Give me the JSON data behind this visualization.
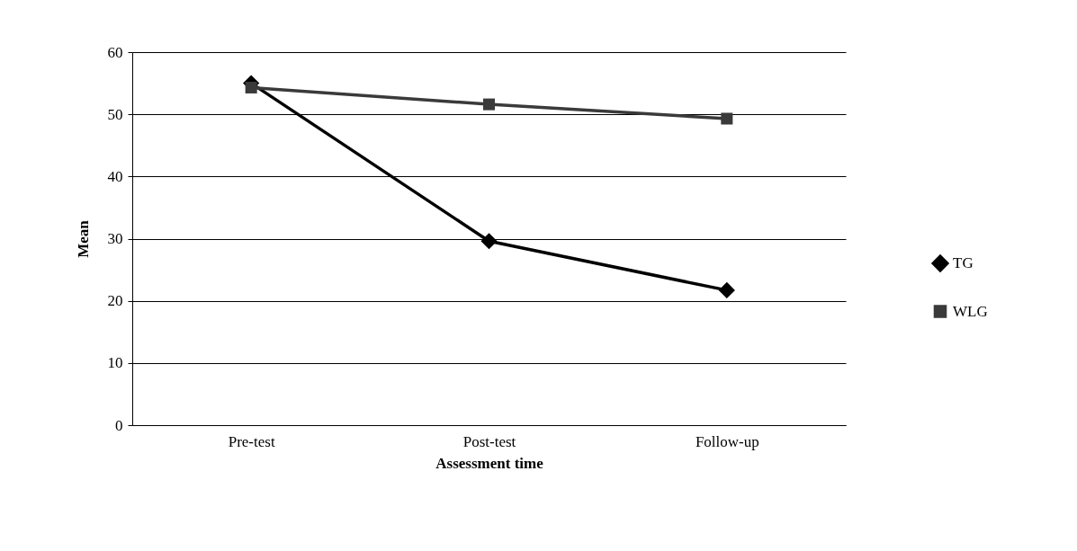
{
  "chart_data": {
    "type": "line",
    "xlabel": "Assessment time",
    "ylabel": "Mean",
    "categories": [
      "Pre-test",
      "Post-test",
      "Follow-up"
    ],
    "series": [
      {
        "name": "TG",
        "color": "#000000",
        "marker": "diamond",
        "values": [
          55.0,
          29.6,
          21.7
        ]
      },
      {
        "name": "WLG",
        "color": "#3a3a3a",
        "marker": "square",
        "values": [
          54.3,
          51.6,
          49.3
        ]
      }
    ],
    "ylim": [
      0,
      60
    ],
    "yticks": [
      0,
      10,
      20,
      30,
      40,
      50,
      60
    ],
    "grid": "y",
    "legend": "right"
  }
}
